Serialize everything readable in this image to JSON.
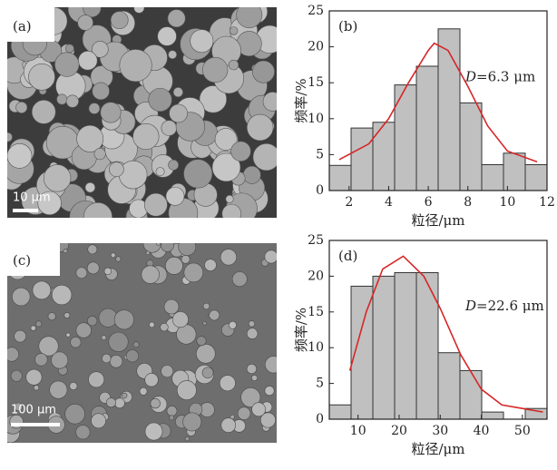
{
  "images": [
    {
      "label": "(a)",
      "scale_bar": "10 μm"
    },
    {
      "label": "(c)",
      "scale_bar": "100 μm"
    }
  ],
  "chart_data": [
    {
      "type": "histogram",
      "panel_label": "(b)",
      "xlabel": "粒径/μm",
      "ylabel": "频率/%",
      "annotation": {
        "symbol": "D",
        "text": "=6.3 μm"
      },
      "bins": [
        1,
        2.1,
        3.2,
        4.3,
        5.4,
        6.5,
        7.6,
        8.7,
        9.8,
        10.9,
        12
      ],
      "values": [
        3.5,
        8.7,
        9.5,
        14.7,
        17.3,
        22.5,
        12.2,
        3.6,
        5.2,
        3.6
      ],
      "color": "#c0c0c0",
      "xlim": [
        1,
        12
      ],
      "xticks": [
        2,
        4,
        6,
        8,
        10,
        12
      ],
      "ylim": [
        0,
        25
      ],
      "yticks": [
        0,
        5,
        10,
        15,
        20,
        25
      ],
      "curve": {
        "color": "#d62728",
        "x": [
          1.5,
          3,
          4,
          5,
          6,
          6.3,
          7,
          8,
          9,
          10,
          11.5
        ],
        "values": [
          4.3,
          6.5,
          10,
          15,
          19.5,
          20.5,
          19.5,
          14.5,
          9,
          5.5,
          4
        ]
      }
    },
    {
      "type": "histogram",
      "panel_label": "(d)",
      "xlabel": "粒径/μm",
      "ylabel": "频率/%",
      "annotation": {
        "symbol": "D",
        "text": "=22.6 μm"
      },
      "bins": [
        3,
        8.3,
        13.6,
        18.9,
        24.2,
        29.5,
        34.8,
        40.1,
        45.4,
        50.7,
        56
      ],
      "values": [
        2,
        18.6,
        20,
        20.5,
        20.5,
        9.3,
        6.8,
        1,
        0,
        1.5
      ],
      "color": "#c0c0c0",
      "xlim": [
        3,
        56
      ],
      "xticks": [
        10,
        20,
        30,
        40,
        50
      ],
      "ylim": [
        0,
        25
      ],
      "yticks": [
        0,
        5,
        10,
        15,
        20,
        25
      ],
      "curve": {
        "color": "#d62728",
        "x": [
          8,
          12,
          16,
          21,
          26,
          30,
          35,
          40,
          45,
          50,
          55
        ],
        "values": [
          6.8,
          15,
          21,
          22.8,
          20,
          15.5,
          9,
          4.2,
          2,
          1.5,
          1
        ]
      }
    }
  ]
}
